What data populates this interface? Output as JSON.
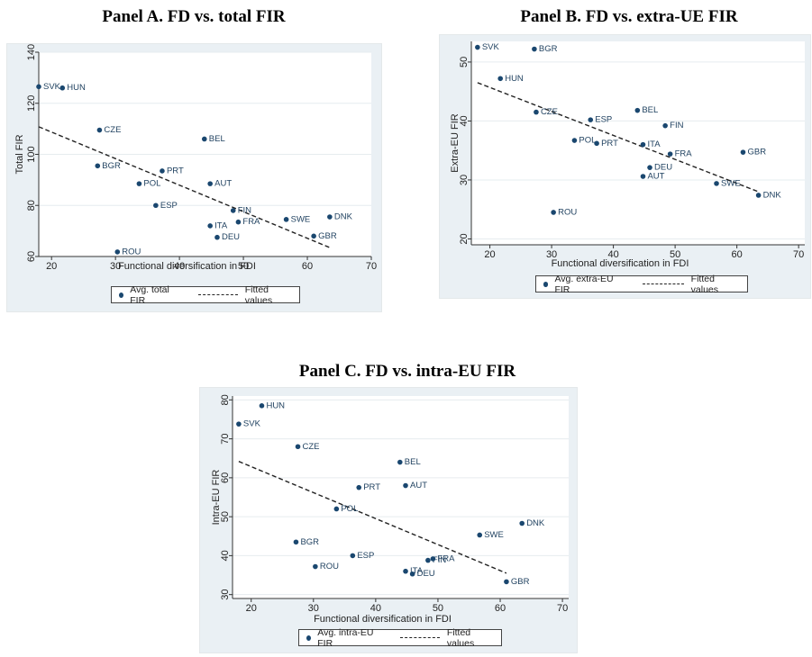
{
  "chart_data": [
    {
      "type": "scatter",
      "title": "Panel A. FD vs. total FIR",
      "xlabel": "Functional diversification in FDI",
      "ylabel": "Total FIR",
      "xlim": [
        18,
        70
      ],
      "ylim": [
        60,
        140
      ],
      "xticks": [
        20,
        30,
        40,
        50,
        60,
        70
      ],
      "yticks": [
        60,
        80,
        100,
        120,
        140
      ],
      "grid": true,
      "legend_position": "bottom-left",
      "series": [
        {
          "name": "Avg. total FIR",
          "points": [
            {
              "label": "SVK",
              "x": 18.0,
              "y": 126.5
            },
            {
              "label": "HUN",
              "x": 21.7,
              "y": 126.0
            },
            {
              "label": "CZE",
              "x": 27.5,
              "y": 109.5
            },
            {
              "label": "BGR",
              "x": 27.2,
              "y": 95.5
            },
            {
              "label": "POL",
              "x": 33.7,
              "y": 88.5
            },
            {
              "label": "PRT",
              "x": 37.3,
              "y": 93.5
            },
            {
              "label": "ESP",
              "x": 36.3,
              "y": 80.0
            },
            {
              "label": "ROU",
              "x": 30.3,
              "y": 61.8
            },
            {
              "label": "BEL",
              "x": 43.9,
              "y": 106.0
            },
            {
              "label": "AUT",
              "x": 44.8,
              "y": 88.5
            },
            {
              "label": "ITA",
              "x": 44.8,
              "y": 72.0
            },
            {
              "label": "DEU",
              "x": 45.9,
              "y": 67.5
            },
            {
              "label": "FIN",
              "x": 48.4,
              "y": 78.0
            },
            {
              "label": "FRA",
              "x": 49.2,
              "y": 73.5
            },
            {
              "label": "SWE",
              "x": 56.7,
              "y": 74.5
            },
            {
              "label": "GBR",
              "x": 61.0,
              "y": 68.0
            },
            {
              "label": "DNK",
              "x": 63.5,
              "y": 75.5
            }
          ]
        },
        {
          "name": "Fitted values",
          "line": [
            [
              18,
              110.8
            ],
            [
              63.5,
              63.5
            ]
          ]
        }
      ]
    },
    {
      "type": "scatter",
      "title": "Panel B. FD vs. extra-UE FIR",
      "xlabel": "Functional diversification in FDI",
      "ylabel": "Extra-EU FIR",
      "xlim": [
        17,
        71
      ],
      "ylim": [
        19,
        53.5
      ],
      "xticks": [
        20,
        30,
        40,
        50,
        60,
        70
      ],
      "yticks": [
        20,
        30,
        40,
        50
      ],
      "grid": true,
      "legend_position": "bottom-left",
      "series": [
        {
          "name": "Avg. extra-EU FIR",
          "points": [
            {
              "label": "SVK",
              "x": 18.0,
              "y": 52.5
            },
            {
              "label": "BGR",
              "x": 27.2,
              "y": 52.2
            },
            {
              "label": "HUN",
              "x": 21.7,
              "y": 47.2
            },
            {
              "label": "CZE",
              "x": 27.5,
              "y": 41.5
            },
            {
              "label": "ESP",
              "x": 36.3,
              "y": 40.2
            },
            {
              "label": "BEL",
              "x": 43.9,
              "y": 41.8
            },
            {
              "label": "FIN",
              "x": 48.4,
              "y": 39.2
            },
            {
              "label": "POL",
              "x": 33.7,
              "y": 36.7
            },
            {
              "label": "PRT",
              "x": 37.3,
              "y": 36.2
            },
            {
              "label": "ITA",
              "x": 44.8,
              "y": 36.0
            },
            {
              "label": "FRA",
              "x": 49.2,
              "y": 34.4
            },
            {
              "label": "GBR",
              "x": 61.0,
              "y": 34.7
            },
            {
              "label": "DEU",
              "x": 45.9,
              "y": 32.1
            },
            {
              "label": "AUT",
              "x": 44.8,
              "y": 30.6
            },
            {
              "label": "SWE",
              "x": 56.7,
              "y": 29.4
            },
            {
              "label": "DNK",
              "x": 63.5,
              "y": 27.4
            },
            {
              "label": "ROU",
              "x": 30.3,
              "y": 24.5
            }
          ]
        },
        {
          "name": "Fitted values",
          "line": [
            [
              18,
              46.5
            ],
            [
              63.5,
              28.0
            ]
          ]
        }
      ]
    },
    {
      "type": "scatter",
      "title": "Panel C. FD vs. intra-EU FIR",
      "xlabel": "Functional diversification in FDI",
      "ylabel": "Intra-EU FIR",
      "xlim": [
        17,
        71
      ],
      "ylim": [
        29,
        81
      ],
      "xticks": [
        20,
        30,
        40,
        50,
        60,
        70
      ],
      "yticks": [
        30,
        40,
        50,
        60,
        70,
        80
      ],
      "grid": true,
      "legend_position": "bottom-left",
      "series": [
        {
          "name": "Avg. intra-EU FIR",
          "points": [
            {
              "label": "HUN",
              "x": 21.7,
              "y": 78.5
            },
            {
              "label": "SVK",
              "x": 18.0,
              "y": 73.8
            },
            {
              "label": "CZE",
              "x": 27.5,
              "y": 68.0
            },
            {
              "label": "BEL",
              "x": 43.9,
              "y": 64.0
            },
            {
              "label": "AUT",
              "x": 44.8,
              "y": 58.0
            },
            {
              "label": "PRT",
              "x": 37.3,
              "y": 57.5
            },
            {
              "label": "POL",
              "x": 33.7,
              "y": 52.0
            },
            {
              "label": "DNK",
              "x": 63.5,
              "y": 48.3
            },
            {
              "label": "SWE",
              "x": 56.7,
              "y": 45.3
            },
            {
              "label": "BGR",
              "x": 27.2,
              "y": 43.5
            },
            {
              "label": "ESP",
              "x": 36.3,
              "y": 40.0
            },
            {
              "label": "ROU",
              "x": 30.3,
              "y": 37.2
            },
            {
              "label": "FIN",
              "x": 48.4,
              "y": 38.8
            },
            {
              "label": "FRA",
              "x": 49.2,
              "y": 39.2
            },
            {
              "label": "ITA",
              "x": 44.8,
              "y": 36.0
            },
            {
              "label": "DEU",
              "x": 45.9,
              "y": 35.3
            },
            {
              "label": "GBR",
              "x": 61.0,
              "y": 33.3
            }
          ]
        },
        {
          "name": "Fitted values",
          "line": [
            [
              18,
              64.2
            ],
            [
              61.0,
              35.5
            ]
          ]
        }
      ]
    }
  ]
}
